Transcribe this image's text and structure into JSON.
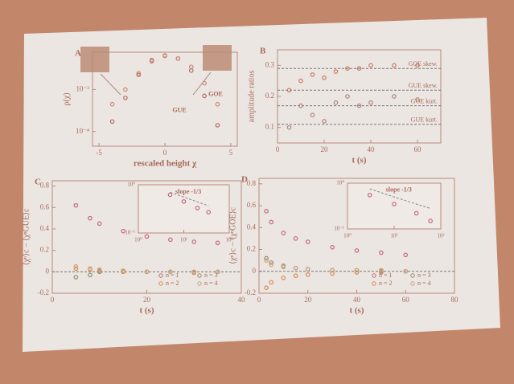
{
  "chart_data": [
    {
      "type": "line",
      "title": "A",
      "xlabel": "rescaled height χ",
      "ylabel": "ρ(χ)",
      "logy": true,
      "x": [
        -4,
        -3,
        -2,
        -1,
        0,
        1,
        2,
        3,
        4
      ],
      "series": [
        {
          "color": "#b86a5e",
          "values": [
            0.0003,
            0.004,
            0.05,
            0.25,
            0.42,
            0.3,
            0.08,
            0.005,
            0.0002
          ]
        },
        {
          "color": "#c98a7a",
          "values": [
            0.002,
            0.01,
            0.06,
            0.22,
            0.4,
            0.3,
            0.12,
            0.02,
            0.002
          ]
        }
      ],
      "annotations": [
        "GUE",
        "GOE"
      ],
      "xlim": [
        -5.5,
        5.5
      ],
      "xticks": [
        -5,
        0,
        5
      ],
      "ylim": [
        2e-05,
        0.6
      ],
      "yticks": [
        {
          "value": 0.01,
          "label": "10⁻²"
        },
        {
          "value": 0.0001,
          "label": "10⁻⁴"
        }
      ]
    },
    {
      "type": "scatter",
      "title": "B",
      "xlabel": "t (s)",
      "ylabel": "amplitude ratios",
      "x": [
        5,
        10,
        15,
        20,
        25,
        30,
        35,
        40,
        50,
        60
      ],
      "series": [
        {
          "color": "#c87a5e",
          "values": [
            0.22,
            0.25,
            0.27,
            0.26,
            0.28,
            0.29,
            0.29,
            0.3,
            0.3,
            0.3
          ]
        },
        {
          "color": "#b0867a",
          "values": [
            0.1,
            0.17,
            0.14,
            0.12,
            0.18,
            0.2,
            0.17,
            0.18,
            0.2,
            0.19
          ]
        }
      ],
      "hlines": [
        {
          "value": 0.29,
          "label": "GOE skew."
        },
        {
          "value": 0.22,
          "label": "GUE skew."
        },
        {
          "value": 0.17,
          "label": "GOE kurt."
        },
        {
          "value": 0.11,
          "label": "GUE kurt."
        }
      ],
      "xlim": [
        0,
        70
      ],
      "xticks": [
        0,
        20,
        40,
        60
      ],
      "ylim": [
        0.05,
        0.35
      ],
      "yticks": [
        0.1,
        0.2,
        0.3
      ]
    },
    {
      "type": "scatter",
      "title": "C",
      "xlabel": "t (s)",
      "ylabel": "⟨χⁿ⟩c − ⟨χⁿGUE⟩c",
      "x": [
        5,
        8,
        10,
        15,
        20,
        25,
        30,
        35
      ],
      "series": [
        {
          "name": "n = 1",
          "color": "#c8687a",
          "values": [
            0.62,
            0.5,
            0.45,
            0.38,
            0.33,
            0.3,
            0.28,
            0.27
          ]
        },
        {
          "name": "n = 2",
          "color": "#d98a55",
          "values": [
            0.03,
            0.02,
            0.01,
            0.0,
            0.0,
            0.0,
            -0.01,
            0.0
          ]
        },
        {
          "name": "n = 3",
          "color": "#9a8a70",
          "values": [
            -0.05,
            -0.03,
            0.0,
            0.01,
            0.0,
            0.0,
            0.0,
            0.0
          ]
        },
        {
          "name": "n = 4",
          "color": "#c9a67a",
          "values": [
            0.05,
            0.03,
            0.02,
            0.01,
            0.0,
            0.0,
            0.0,
            0.0
          ]
        }
      ],
      "hlines": [
        {
          "value": 0
        }
      ],
      "xlim": [
        0,
        40
      ],
      "xticks": [
        0,
        20,
        40
      ],
      "ylim": [
        -0.2,
        0.85
      ],
      "yticks": [
        -0.2,
        0,
        0.2,
        0.4,
        0.6,
        0.8
      ],
      "inset": {
        "type": "scatter",
        "logx": true,
        "logy": true,
        "x": [
          5,
          10,
          20,
          35
        ],
        "series": [
          {
            "color": "#c8687a",
            "values": [
              0.62,
              0.45,
              0.33,
              0.27
            ]
          },
          {
            "color": "#888888",
            "style": "dashed",
            "values": [
              0.7,
              0.556,
              0.441,
              0.366
            ]
          }
        ],
        "annotations": [
          "slope -1/3"
        ],
        "xlim": [
          1,
          100
        ],
        "xticks": [
          {
            "value": 1,
            "label": "10⁰"
          },
          {
            "value": 10,
            "label": "10¹"
          },
          {
            "value": 100,
            "label": "10²"
          }
        ],
        "ylim": [
          0.1,
          1
        ],
        "yticks": [
          {
            "value": 0.1,
            "label": "10⁻¹"
          },
          {
            "value": 1,
            "label": "10⁰"
          }
        ]
      }
    },
    {
      "type": "scatter",
      "title": "D",
      "xlabel": "t (s)",
      "ylabel": "⟨χⁿ⟩c − ⟨χⁿGOE⟩c",
      "x": [
        3,
        5,
        10,
        15,
        20,
        30,
        40,
        50,
        60
      ],
      "series": [
        {
          "name": "n = 1",
          "color": "#c8687a",
          "values": [
            0.55,
            0.45,
            0.35,
            0.3,
            0.27,
            0.22,
            0.19,
            0.17,
            0.15
          ]
        },
        {
          "name": "n = 2",
          "color": "#d98a55",
          "values": [
            -0.15,
            -0.1,
            -0.06,
            -0.04,
            -0.03,
            -0.02,
            -0.01,
            -0.01,
            0
          ]
        },
        {
          "name": "n = 3",
          "color": "#9a8a70",
          "values": [
            0.12,
            0.08,
            0.05,
            0.03,
            0.02,
            0.01,
            0.01,
            0,
            0
          ]
        },
        {
          "name": "n = 4",
          "color": "#c9a67a",
          "values": [
            0.1,
            0.06,
            0.04,
            0.03,
            0.02,
            0.01,
            0.01,
            0.01,
            0
          ]
        }
      ],
      "hlines": [
        {
          "value": 0
        }
      ],
      "xlim": [
        0,
        80
      ],
      "xticks": [
        0,
        20,
        40,
        60,
        80
      ],
      "ylim": [
        -0.2,
        0.85
      ],
      "yticks": [
        -0.2,
        0,
        0.2,
        0.4,
        0.6,
        0.8
      ],
      "inset": {
        "type": "scatter",
        "logx": true,
        "logy": true,
        "x": [
          3,
          10,
          30,
          60
        ],
        "series": [
          {
            "color": "#c8687a",
            "values": [
              0.55,
              0.35,
              0.22,
              0.15
            ]
          },
          {
            "color": "#888888",
            "style": "dashed",
            "values": [
              0.75,
              0.5,
              0.35,
              0.28
            ]
          }
        ],
        "annotations": [
          "slope -1/3"
        ],
        "xlim": [
          1,
          100
        ],
        "xticks": [
          {
            "value": 1,
            "label": "10⁰"
          },
          {
            "value": 10,
            "label": "10¹"
          },
          {
            "value": 100,
            "label": "10²"
          }
        ],
        "ylim": [
          0.1,
          1
        ],
        "yticks": [
          {
            "value": 0.1,
            "label": "10⁻¹"
          },
          {
            "value": 1,
            "label": "10⁰"
          }
        ]
      }
    }
  ]
}
